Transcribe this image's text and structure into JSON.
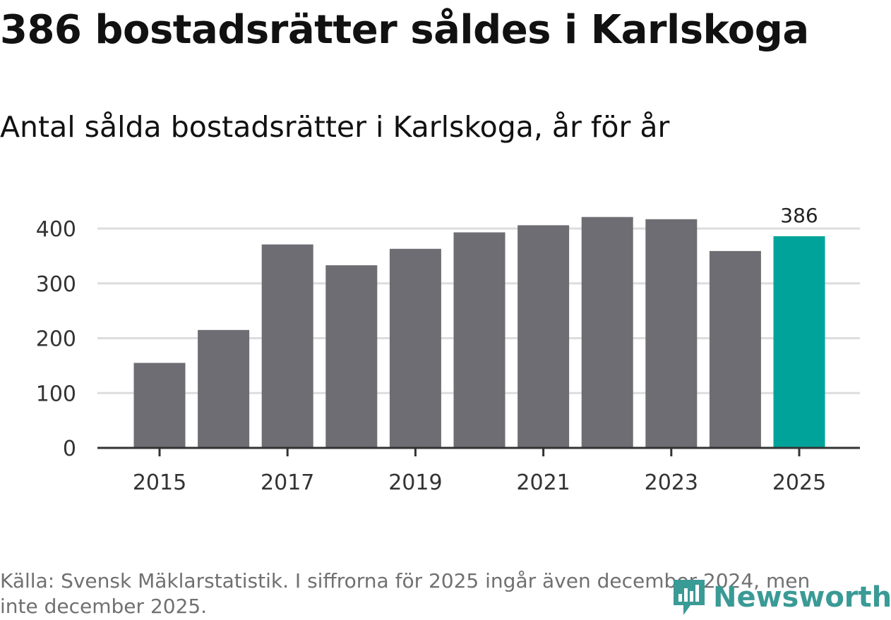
{
  "title": "386 bostadsrätter såldes i Karlskoga",
  "subtitle": "Antal sålda bostadsrätter i Karlskoga, år för år",
  "source": "Källa: Svensk Mäklarstatistik. I siffrorna för 2025 ingår även december 2024, men inte december 2025.",
  "logo": {
    "text": "Newsworthy",
    "icon": "newsworthy-chart-icon",
    "color": "#3a9a96"
  },
  "chart_data": {
    "type": "bar",
    "categories": [
      "2015",
      "2016",
      "2017",
      "2018",
      "2019",
      "2020",
      "2021",
      "2022",
      "2023",
      "2024",
      "2025"
    ],
    "values": [
      155,
      215,
      371,
      333,
      363,
      393,
      406,
      421,
      417,
      359,
      386
    ],
    "x_tick_labels": [
      "2015",
      "2017",
      "2019",
      "2021",
      "2023",
      "2025"
    ],
    "y_ticks": [
      0,
      100,
      200,
      300,
      400
    ],
    "ylim": [
      0,
      440
    ],
    "grid": true,
    "highlight": {
      "category": "2025",
      "label": "386"
    },
    "colors": {
      "bar": "#6e6d73",
      "highlight": "#00a39a",
      "grid": "#dddddd",
      "axis": "#333333"
    }
  }
}
